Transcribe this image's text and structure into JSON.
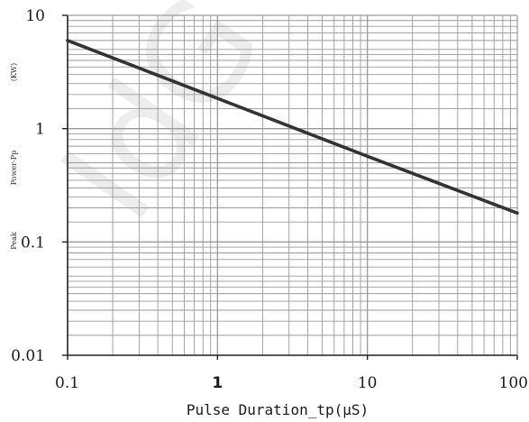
{
  "chart_data": {
    "type": "line",
    "x_scale": "log",
    "y_scale": "log",
    "xlim": [
      0.1,
      100
    ],
    "ylim": [
      0.01,
      10
    ],
    "x_ticks": [
      0.1,
      1,
      10,
      100
    ],
    "x_tick_labels": [
      "0.1",
      "1",
      "10",
      "100"
    ],
    "y_ticks": [
      0.01,
      0.1,
      1,
      10
    ],
    "y_tick_labels": [
      "0.01",
      "0.1",
      "1",
      "10"
    ],
    "xlabel": "Pulse Duration_tp(μS)",
    "ylabel_parts": [
      "Peak",
      "Power-Pp",
      "(KW)"
    ],
    "grid": true,
    "series": [
      {
        "x": [
          0.1,
          1,
          10,
          100
        ],
        "y": [
          6.0,
          1.85,
          0.57,
          0.18
        ]
      }
    ],
    "line_color": "#333333",
    "grid_color": "#9a9a9a",
    "axis_color": "#222222"
  },
  "watermark": "IdG"
}
